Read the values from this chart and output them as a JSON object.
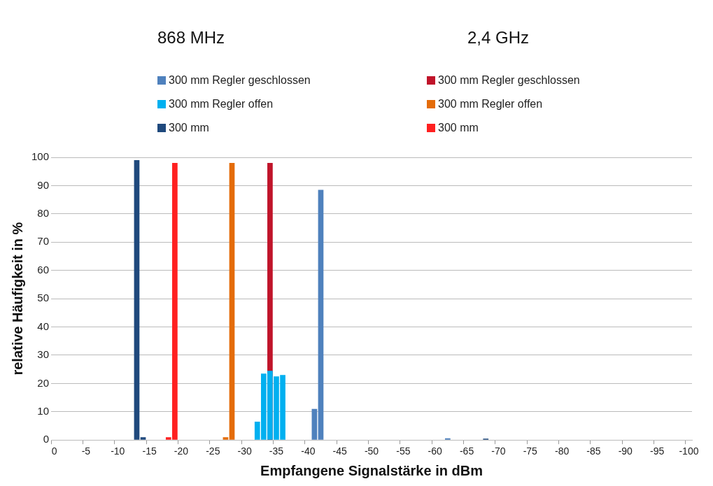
{
  "chart_data": {
    "type": "bar",
    "xlabel": "Empfangene Signalstärke in dBm",
    "ylabel": "relative Häufigkeit in %",
    "annotations": [
      "868 MHz",
      "2,4 GHz"
    ],
    "categories": [
      "0",
      null,
      null,
      null,
      null,
      "-5",
      null,
      null,
      null,
      null,
      "-10",
      null,
      null,
      null,
      null,
      "-15",
      null,
      null,
      null,
      null,
      "-20",
      null,
      null,
      null,
      null,
      "-25",
      null,
      null,
      null,
      null,
      "-30",
      null,
      null,
      null,
      null,
      "-35",
      null,
      null,
      null,
      null,
      "-40",
      null,
      null,
      null,
      null,
      "-45",
      null,
      null,
      null,
      null,
      "-50",
      null,
      null,
      null,
      null,
      "-55",
      null,
      null,
      null,
      null,
      "-60",
      null,
      null,
      null,
      null,
      "-65",
      null,
      null,
      null,
      null,
      "-70",
      null,
      null,
      null,
      null,
      "-75",
      null,
      null,
      null,
      null,
      "-80",
      null,
      null,
      null,
      null,
      "-85",
      null,
      null,
      null,
      null,
      "-90",
      null,
      null,
      null,
      null,
      "-95",
      null,
      null,
      null,
      null,
      "-100"
    ],
    "series": [
      {
        "name": "300 mm Regler geschlossen",
        "color": "#4f81bd",
        "values": [
          null,
          null,
          null,
          null,
          null,
          null,
          null,
          null,
          null,
          null,
          null,
          null,
          null,
          null,
          null,
          null,
          null,
          null,
          null,
          null,
          null,
          null,
          null,
          null,
          null,
          null,
          null,
          null,
          null,
          null,
          null,
          null,
          null,
          null,
          null,
          null,
          null,
          null,
          null,
          null,
          null,
          11,
          88.5,
          null,
          null,
          null,
          null,
          null,
          null,
          null,
          null,
          null,
          null,
          null,
          null,
          null,
          null,
          null,
          null,
          null,
          null,
          null,
          0.6,
          null,
          null,
          null,
          null,
          null,
          null,
          null,
          null,
          null,
          null,
          null,
          null,
          null,
          null,
          null,
          null,
          null,
          null,
          null,
          null,
          null,
          null,
          null,
          null,
          null,
          null,
          null,
          null,
          null,
          null,
          null,
          null,
          null,
          null,
          null,
          null,
          null,
          null
        ]
      },
      {
        "name": "300 mm Regler offen",
        "color": "#00b0f0",
        "values": [
          null,
          null,
          null,
          null,
          null,
          null,
          null,
          null,
          null,
          null,
          null,
          null,
          null,
          null,
          null,
          null,
          null,
          null,
          null,
          null,
          null,
          null,
          null,
          null,
          null,
          null,
          null,
          null,
          null,
          null,
          null,
          null,
          6.5,
          23.5,
          24.5,
          22.5,
          23,
          null,
          null,
          null,
          null,
          null,
          null,
          null,
          null,
          null,
          null,
          null,
          null,
          null,
          null,
          null,
          null,
          null,
          null,
          null,
          null,
          null,
          null,
          null,
          null,
          null,
          null,
          null,
          null,
          null,
          null,
          null,
          null,
          null,
          null,
          null,
          null,
          null,
          null,
          null,
          null,
          null,
          null,
          null,
          null,
          null,
          null,
          null,
          null,
          null,
          null,
          null,
          null,
          null,
          null,
          null,
          null,
          null,
          null,
          null,
          null,
          null,
          null,
          null,
          null
        ]
      },
      {
        "name": "300 mm",
        "color": "#1f497d",
        "values": [
          null,
          null,
          null,
          null,
          null,
          null,
          null,
          null,
          null,
          null,
          null,
          null,
          null,
          99,
          1,
          null,
          null,
          null,
          null,
          null,
          null,
          null,
          null,
          null,
          null,
          null,
          null,
          null,
          null,
          null,
          null,
          null,
          null,
          null,
          null,
          null,
          null,
          null,
          null,
          null,
          null,
          null,
          null,
          null,
          null,
          null,
          null,
          null,
          null,
          null,
          null,
          null,
          null,
          null,
          null,
          null,
          null,
          null,
          null,
          null,
          null,
          null,
          null,
          null,
          null,
          null,
          null,
          null,
          0.5,
          null,
          null,
          null,
          null,
          null,
          null,
          null,
          null,
          null,
          null,
          null,
          null,
          null,
          null,
          null,
          null,
          null,
          null,
          null,
          null,
          null,
          null,
          null,
          null,
          null,
          null,
          null,
          null,
          null,
          null,
          null,
          null
        ]
      },
      {
        "name": "300 mm Regler geschlossen",
        "color": "#c0142a",
        "values": [
          null,
          null,
          null,
          null,
          null,
          null,
          null,
          null,
          null,
          null,
          null,
          null,
          null,
          null,
          null,
          null,
          null,
          null,
          null,
          null,
          null,
          null,
          null,
          null,
          null,
          null,
          null,
          null,
          null,
          null,
          null,
          null,
          null,
          null,
          98,
          null,
          null,
          null,
          null,
          null,
          null,
          null,
          null,
          null,
          null,
          null,
          null,
          null,
          null,
          null,
          null,
          null,
          null,
          null,
          null,
          null,
          null,
          null,
          null,
          null,
          null,
          null,
          null,
          null,
          null,
          null,
          null,
          null,
          null,
          null,
          null,
          null,
          null,
          null,
          null,
          null,
          null,
          null,
          null,
          null,
          null,
          null,
          null,
          null,
          null,
          null,
          null,
          null,
          null,
          null,
          null,
          null,
          null,
          null,
          null,
          null,
          null,
          null,
          null,
          null,
          null
        ]
      },
      {
        "name": "300 mm Regler offen",
        "color": "#e46c0a",
        "values": [
          null,
          null,
          null,
          null,
          null,
          null,
          null,
          null,
          null,
          null,
          null,
          null,
          null,
          null,
          null,
          null,
          null,
          null,
          null,
          null,
          null,
          null,
          null,
          null,
          null,
          null,
          null,
          1,
          98,
          null,
          null,
          null,
          null,
          null,
          null,
          null,
          null,
          null,
          null,
          null,
          null,
          null,
          null,
          null,
          null,
          null,
          null,
          null,
          null,
          null,
          null,
          null,
          null,
          null,
          null,
          null,
          null,
          null,
          null,
          null,
          null,
          null,
          null,
          null,
          null,
          null,
          null,
          null,
          null,
          null,
          null,
          null,
          null,
          null,
          null,
          null,
          null,
          null,
          null,
          null,
          null,
          null,
          null,
          null,
          null,
          null,
          null,
          null,
          null,
          null,
          null,
          null,
          null,
          null,
          null,
          null,
          null,
          null,
          null,
          null,
          null
        ]
      },
      {
        "name": "300 mm",
        "color": "#ff2020",
        "values": [
          null,
          null,
          null,
          null,
          null,
          null,
          null,
          null,
          null,
          null,
          null,
          null,
          null,
          null,
          null,
          null,
          null,
          null,
          1,
          98,
          null,
          null,
          null,
          null,
          null,
          null,
          null,
          null,
          null,
          null,
          null,
          null,
          null,
          null,
          null,
          null,
          null,
          null,
          null,
          null,
          null,
          null,
          null,
          null,
          null,
          null,
          null,
          null,
          null,
          null,
          null,
          null,
          null,
          null,
          null,
          null,
          null,
          null,
          null,
          null,
          null,
          null,
          null,
          null,
          null,
          null,
          null,
          null,
          null,
          null,
          null,
          null,
          null,
          null,
          null,
          null,
          null,
          null,
          null,
          null,
          null,
          null,
          null,
          null,
          null,
          null,
          null,
          null,
          null,
          null,
          null,
          null,
          null,
          null,
          null,
          null,
          null,
          null,
          null,
          null,
          null
        ]
      }
    ],
    "ylim": [
      0,
      100
    ],
    "yticks": [
      0,
      10,
      20,
      30,
      40,
      50,
      60,
      70,
      80,
      90,
      100
    ],
    "grid": "y",
    "legend": "top"
  }
}
